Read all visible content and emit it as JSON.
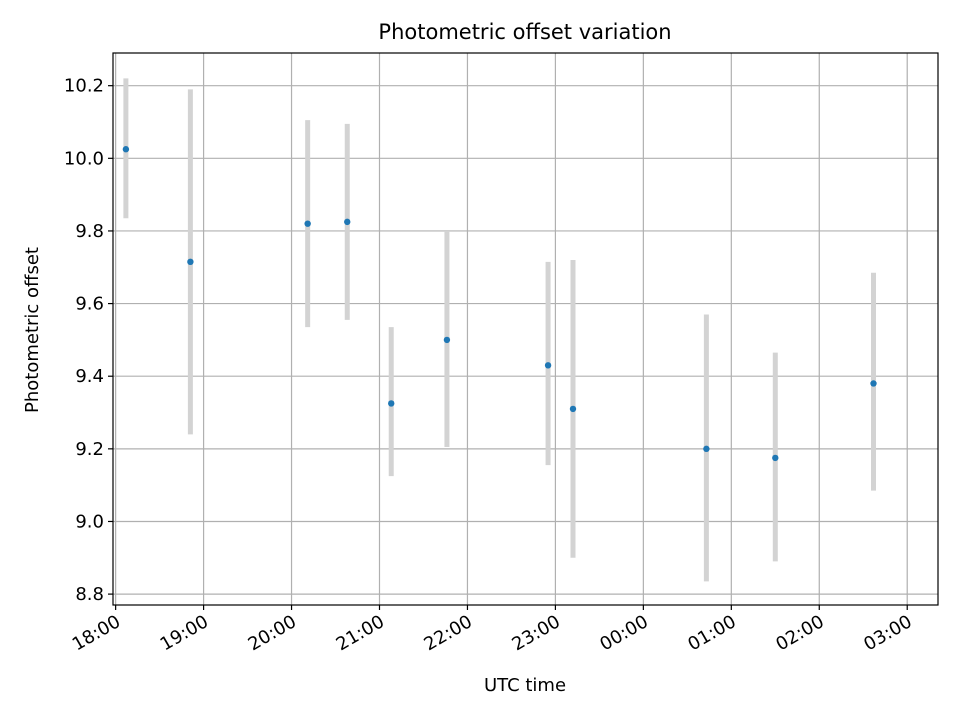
{
  "chart_data": {
    "type": "scatter",
    "title": "Photometric offset variation",
    "xlabel": "UTC time",
    "ylabel": "Photometric offset",
    "x_ticks": [
      "18:00",
      "19:00",
      "20:00",
      "21:00",
      "22:00",
      "23:00",
      "00:00",
      "01:00",
      "02:00",
      "03:00"
    ],
    "y_ticks": [
      "8.8",
      "9.0",
      "9.2",
      "9.4",
      "9.6",
      "9.8",
      "10.0",
      "10.2"
    ],
    "xlim_hours": [
      17.97,
      27.35
    ],
    "ylim": [
      8.77,
      10.29
    ],
    "grid": true,
    "points": [
      {
        "x": "18:07",
        "y": 10.025,
        "err_low": 9.835,
        "err_high": 10.22
      },
      {
        "x": "18:51",
        "y": 9.715,
        "err_low": 9.24,
        "err_high": 10.19
      },
      {
        "x": "20:11",
        "y": 9.82,
        "err_low": 9.535,
        "err_high": 10.105
      },
      {
        "x": "20:38",
        "y": 9.825,
        "err_low": 9.555,
        "err_high": 10.095
      },
      {
        "x": "21:08",
        "y": 9.325,
        "err_low": 9.125,
        "err_high": 9.535
      },
      {
        "x": "21:46",
        "y": 9.5,
        "err_low": 9.205,
        "err_high": 9.8
      },
      {
        "x": "22:55",
        "y": 9.43,
        "err_low": 9.155,
        "err_high": 9.715
      },
      {
        "x": "23:12",
        "y": 9.31,
        "err_low": 8.9,
        "err_high": 9.72
      },
      {
        "x": "00:43",
        "y": 9.2,
        "err_low": 8.835,
        "err_high": 9.57
      },
      {
        "x": "01:30",
        "y": 9.175,
        "err_low": 8.89,
        "err_high": 9.465
      },
      {
        "x": "02:37",
        "y": 9.38,
        "err_low": 9.085,
        "err_high": 9.685
      }
    ],
    "colors": {
      "point": "#1f77b4",
      "errorbar": "#d3d3d3",
      "grid": "#b0b0b0",
      "axes": "#000000"
    }
  }
}
